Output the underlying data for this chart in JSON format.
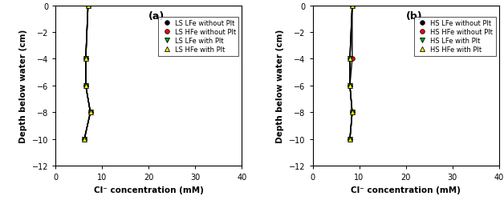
{
  "panel_a": {
    "label": "(a)",
    "series": [
      {
        "name": "LS LFe without Plt",
        "color": "#000000",
        "marker": "o",
        "markersize": 4,
        "depths": [
          0,
          -4,
          -6,
          -8,
          -10
        ],
        "conc": [
          7.0,
          6.5,
          6.5,
          7.5,
          6.2
        ]
      },
      {
        "name": "LS HFe without Plt",
        "color": "#ff0000",
        "marker": "o",
        "markersize": 4,
        "depths": [
          0,
          -4,
          -6,
          -8,
          -10
        ],
        "conc": [
          7.0,
          6.5,
          6.5,
          7.5,
          6.2
        ]
      },
      {
        "name": "LS LFe with Plt",
        "color": "#00aa00",
        "marker": "v",
        "markersize": 5,
        "depths": [
          0,
          -4,
          -6,
          -8,
          -10
        ],
        "conc": [
          7.0,
          6.5,
          6.5,
          7.5,
          6.2
        ]
      },
      {
        "name": "LS HFe with Plt",
        "color": "#ffff00",
        "marker": "^",
        "markersize": 5,
        "depths": [
          0,
          -4,
          -6,
          -8,
          -10
        ],
        "conc": [
          7.0,
          6.5,
          6.5,
          7.5,
          6.2
        ]
      }
    ]
  },
  "panel_b": {
    "label": "(b)",
    "series": [
      {
        "name": "HS LFe without Plt",
        "color": "#000000",
        "marker": "o",
        "markersize": 4,
        "depths": [
          0,
          -4,
          -6,
          -8,
          -10
        ],
        "conc": [
          8.5,
          8.0,
          8.0,
          8.5,
          8.0
        ]
      },
      {
        "name": "HS HFe without Plt",
        "color": "#ff0000",
        "marker": "o",
        "markersize": 4,
        "depths": [
          0,
          -4,
          -6,
          -8,
          -10
        ],
        "conc": [
          8.5,
          8.5,
          8.0,
          8.5,
          8.0
        ]
      },
      {
        "name": "HS LFe with Plt",
        "color": "#00aa00",
        "marker": "v",
        "markersize": 5,
        "depths": [
          0,
          -4,
          -6,
          -8,
          -10
        ],
        "conc": [
          8.5,
          8.0,
          8.0,
          8.5,
          8.0
        ]
      },
      {
        "name": "HS HFe with Plt",
        "color": "#ffff00",
        "marker": "^",
        "markersize": 5,
        "depths": [
          0,
          -4,
          -6,
          -8,
          -10
        ],
        "conc": [
          8.5,
          8.0,
          8.0,
          8.5,
          8.0
        ]
      }
    ]
  },
  "ylim": [
    -12,
    0
  ],
  "xlim": [
    0,
    40
  ],
  "xticks": [
    0,
    10,
    20,
    30,
    40
  ],
  "yticks": [
    0,
    -2,
    -4,
    -6,
    -8,
    -10,
    -12
  ],
  "xlabel": "Cl⁻ concentration (mM)",
  "ylabel": "Depth below water (cm)",
  "line_color": "#000000",
  "line_width": 1.0,
  "tick_labelsize": 7,
  "axis_labelsize": 7.5,
  "legend_fontsize": 6,
  "panel_label_fontsize": 9
}
